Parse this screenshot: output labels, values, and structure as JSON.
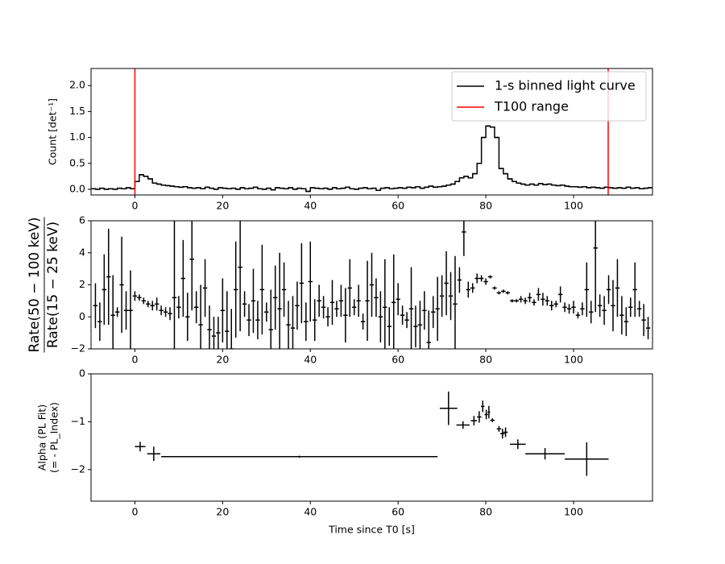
{
  "chart_data": [
    {
      "type": "step",
      "ylabel": "Count [det⁻¹]",
      "legend": "upper right",
      "xlim": [
        -10,
        118
      ],
      "ylim": [
        -0.11,
        2.33
      ],
      "xticks": [
        0,
        20,
        40,
        60,
        80,
        100
      ],
      "yticks": [
        {
          "value": 0,
          "label": "0.0"
        },
        {
          "value": 0.5,
          "label": "0.5"
        },
        {
          "value": 1,
          "label": "1.0"
        },
        {
          "value": 1.5,
          "label": "1.5"
        },
        {
          "value": 2,
          "label": "2.0"
        }
      ],
      "series": [
        {
          "name": "1-s binned light curve",
          "color": "#000000",
          "bins": [
            -10,
            -9,
            -8,
            -7,
            -6,
            -5,
            -4,
            -3,
            -2,
            -1,
            0,
            1,
            2,
            3,
            4,
            5,
            6,
            7,
            8,
            9,
            10,
            11,
            12,
            13,
            14,
            15,
            16,
            17,
            18,
            19,
            20,
            21,
            22,
            23,
            24,
            25,
            26,
            27,
            28,
            29,
            30,
            31,
            32,
            33,
            34,
            35,
            36,
            37,
            38,
            39,
            40,
            41,
            42,
            43,
            44,
            45,
            46,
            47,
            48,
            49,
            50,
            51,
            52,
            53,
            54,
            55,
            56,
            57,
            58,
            59,
            60,
            61,
            62,
            63,
            64,
            65,
            66,
            67,
            68,
            69,
            70,
            71,
            72,
            73,
            74,
            75,
            76,
            77,
            78,
            79,
            80,
            81,
            82,
            83,
            84,
            85,
            86,
            87,
            88,
            89,
            90,
            91,
            92,
            93,
            94,
            95,
            96,
            97,
            98,
            99,
            100,
            101,
            102,
            103,
            104,
            105,
            106,
            107,
            108,
            109,
            110,
            111,
            112,
            113,
            114,
            115,
            116,
            117,
            118
          ],
          "values": [
            0.01,
            0.0,
            0.02,
            0.0,
            0.01,
            0.0,
            0.02,
            0.01,
            0.03,
            0.01,
            0.15,
            0.28,
            0.25,
            0.2,
            0.12,
            0.1,
            0.08,
            0.07,
            0.06,
            0.05,
            0.04,
            0.05,
            0.03,
            0.02,
            0.03,
            0.01,
            0.04,
            0.02,
            0.0,
            0.03,
            0.02,
            0.01,
            0.02,
            0.0,
            0.03,
            0.01,
            0.02,
            0.04,
            0.01,
            0.0,
            0.02,
            -0.01,
            0.03,
            0.02,
            0.01,
            0.03,
            0.0,
            0.02,
            0.01,
            -0.04,
            0.03,
            0.02,
            0.01,
            0.02,
            0.0,
            0.03,
            0.01,
            0.02,
            0.04,
            0.01,
            0.0,
            0.02,
            0.03,
            0.01,
            0.02,
            -0.02,
            0.02,
            0.03,
            0.01,
            0.02,
            0.03,
            0.02,
            0.04,
            0.03,
            0.05,
            0.02,
            0.04,
            0.06,
            0.04,
            0.05,
            0.06,
            0.08,
            0.1,
            0.15,
            0.22,
            0.25,
            0.22,
            0.3,
            0.5,
            1.0,
            1.22,
            1.2,
            1.0,
            0.4,
            0.3,
            0.2,
            0.15,
            0.12,
            0.1,
            0.08,
            0.1,
            0.08,
            0.11,
            0.09,
            0.1,
            0.08,
            0.07,
            0.08,
            0.06,
            0.05,
            0.05,
            0.04,
            0.05,
            0.03,
            0.04,
            0.03,
            0.02,
            0.04,
            0.03,
            0.02,
            0.03,
            0.02,
            0.04,
            0.02,
            0.03,
            0.01,
            0.02,
            0.03
          ]
        },
        {
          "name": "T100 range",
          "color": "#ff0000",
          "vlines": [
            0,
            107.9
          ]
        }
      ]
    },
    {
      "type": "errorbar",
      "ylabel_numerator": "Rate(50 − 100 keV)",
      "ylabel_denominator": "Rate(15 − 25 keV)",
      "xlim": [
        -10,
        118
      ],
      "ylim": [
        -2,
        6
      ],
      "xticks": [
        0,
        20,
        40,
        60,
        80,
        100
      ],
      "yticks": [
        {
          "value": -2,
          "label": "−2"
        },
        0,
        2,
        4,
        6
      ],
      "color": "#000000",
      "xerr": 0.5,
      "x": [
        -9,
        -8,
        -7,
        -6,
        -5,
        -4,
        -3,
        -2,
        -1,
        0,
        1,
        2,
        3,
        4,
        5,
        6,
        7,
        8,
        9,
        10,
        11,
        12,
        13,
        14,
        15,
        16,
        17,
        18,
        19,
        20,
        21,
        22,
        23,
        24,
        25,
        26,
        27,
        28,
        29,
        30,
        31,
        32,
        33,
        34,
        35,
        36,
        37,
        38,
        39,
        40,
        41,
        42,
        43,
        44,
        45,
        46,
        47,
        48,
        49,
        50,
        51,
        52,
        53,
        54,
        55,
        56,
        57,
        58,
        59,
        60,
        61,
        62,
        63,
        64,
        65,
        66,
        67,
        68,
        69,
        70,
        71,
        72,
        73,
        74,
        75,
        76,
        77,
        78,
        79,
        80,
        81,
        82,
        83,
        84,
        85,
        86,
        87,
        88,
        89,
        90,
        91,
        92,
        93,
        94,
        95,
        96,
        97,
        98,
        99,
        100,
        101,
        102,
        103,
        104,
        105,
        106,
        107,
        108,
        109,
        110,
        111,
        112,
        113,
        114,
        115,
        116,
        117
      ],
      "values": [
        0.7,
        -0.3,
        1.7,
        2.5,
        0.1,
        0.3,
        2.0,
        0.4,
        0.4,
        1.3,
        1.2,
        1.0,
        0.8,
        0.7,
        0.8,
        0.4,
        0.3,
        0.2,
        1.2,
        0.6,
        2.4,
        0.0,
        3.6,
        0.6,
        -0.5,
        1.8,
        -0.8,
        -1.2,
        -1.0,
        0.4,
        -0.9,
        -2.0,
        1.7,
        3.1,
        0.8,
        -0.2,
        1.0,
        -0.2,
        1.7,
        0.3,
        -0.8,
        1.2,
        0.5,
        1.7,
        -0.5,
        -0.7,
        0.7,
        2.1,
        -0.3,
        2.2,
        -0.2,
        1.0,
        0.6,
        0.0,
        0.9,
        0.5,
        1.0,
        0.1,
        1.8,
        0.6,
        1.0,
        -0.3,
        1.0,
        2.0,
        1.2,
        0.0,
        0.6,
        -0.6,
        0.9,
        1.1,
        0.1,
        -0.2,
        0.5,
        -0.6,
        -0.5,
        0.4,
        -1.6,
        0.3,
        0.5,
        1.3,
        2.1,
        1.3,
        0.8,
        2.3,
        5.3,
        1.7,
        1.8,
        2.4,
        2.4,
        2.2,
        2.5,
        1.8,
        1.5,
        1.6,
        1.5,
        1.0,
        1.0,
        1.1,
        1.0,
        1.2,
        0.9,
        1.4,
        1.1,
        1.0,
        0.7,
        0.8,
        1.4,
        0.6,
        0.5,
        0.6,
        0.1,
        0.5,
        1.7,
        0.3,
        4.3,
        0.7,
        0.4,
        1.7,
        0.7,
        1.8,
        0.1,
        -0.3,
        0.6,
        1.7,
        0.5,
        -0.2,
        -0.7
      ],
      "yerr": [
        1.4,
        1.2,
        2.2,
        3,
        2.5,
        0.3,
        3,
        1.2,
        2.5,
        0.3,
        0.2,
        0.2,
        0.2,
        0.3,
        0.4,
        0.3,
        0.3,
        0.4,
        4.8,
        0.7,
        2.4,
        1.5,
        3.2,
        1,
        2.5,
        1.8,
        1.5,
        1.2,
        1.0,
        2.0,
        2.5,
        2.5,
        3.0,
        4.0,
        0.8,
        1,
        2.0,
        1.2,
        2.8,
        0.6,
        2.5,
        2,
        3.5,
        1.7,
        1.5,
        2,
        1.5,
        2.5,
        1.2,
        2.5,
        1.3,
        1.0,
        0.7,
        0.6,
        1.4,
        0.5,
        1.0,
        1.7,
        1.8,
        0.5,
        1.0,
        0.5,
        2.5,
        2.0,
        1.2,
        1.6,
        3.0,
        1.2,
        3,
        1,
        0.6,
        0.5,
        2.6,
        1.3,
        1.5,
        1.2,
        2,
        1,
        2,
        1.3,
        2,
        1.5,
        3,
        0.8,
        1.5,
        0.5,
        0.3,
        0.3,
        0.2,
        0.2,
        0.1,
        0.1,
        0.1,
        0.1,
        0.1,
        0.1,
        0.1,
        0.2,
        0.2,
        0.3,
        0.2,
        0.4,
        0.4,
        0.3,
        0.3,
        0.2,
        0.5,
        0.3,
        0.3,
        0.4,
        0.2,
        0.4,
        1.7,
        0.7,
        4,
        0.7,
        0.9,
        0.9,
        1.6,
        1.8,
        1.2,
        0.9,
        0.6,
        1.7,
        0.5,
        1,
        0.7
      ]
    },
    {
      "type": "errorbar",
      "ylabel": [
        "Alpha (PL Fit)",
        "(= - PL_Index)"
      ],
      "xlabel": "Time since T0 [s]",
      "xlim": [
        -10,
        118
      ],
      "ylim": [
        -2.66,
        0
      ],
      "xticks": [
        0,
        20,
        40,
        60,
        80,
        100
      ],
      "yticks": [
        0,
        {
          "value": -1,
          "label": "−1"
        },
        {
          "value": -2,
          "label": "−2"
        }
      ],
      "color": "#000000",
      "x": [
        1.2,
        4.3,
        37.5,
        71.5,
        74.8,
        77.3,
        78.5,
        79.3,
        80.1,
        80.7,
        81.5,
        83,
        83.8,
        84.5,
        87.3,
        93.5,
        103
      ],
      "values": [
        -1.52,
        -1.67,
        -1.73,
        -0.72,
        -1.07,
        -0.98,
        -0.9,
        -0.68,
        -0.85,
        -0.8,
        -0.97,
        -1.15,
        -1.25,
        -1.22,
        -1.47,
        -1.67,
        -1.78
      ],
      "xerr": [
        1.2,
        1.5,
        31.5,
        2,
        1.5,
        0.7,
        0.5,
        0.4,
        0.4,
        0.3,
        0.5,
        0.5,
        0.5,
        0.5,
        1.8,
        4.5,
        5
      ],
      "yerr": [
        0.1,
        0.15,
        0.02,
        0.35,
        0.08,
        0.1,
        0.12,
        0.12,
        0.1,
        0.13,
        0.04,
        0.06,
        0.1,
        0.1,
        0.1,
        0.12,
        0.35
      ]
    }
  ]
}
